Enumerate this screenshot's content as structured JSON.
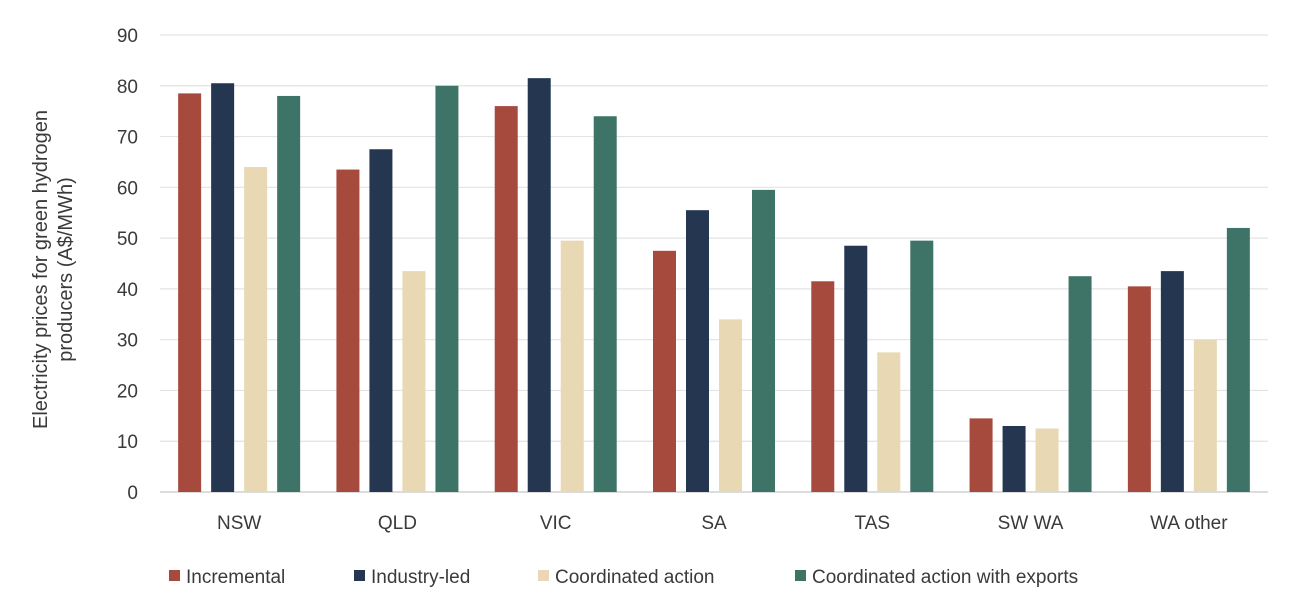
{
  "chart_data": {
    "type": "bar",
    "title": "",
    "xlabel": "",
    "ylabel_lines": [
      "Electricity prices for green hydrogen",
      "producers (A$/MWh)"
    ],
    "ylim": [
      0,
      90
    ],
    "yticks": [
      0,
      10,
      20,
      30,
      40,
      50,
      60,
      70,
      80,
      90
    ],
    "grid": true,
    "legend_position": "bottom",
    "categories": [
      "NSW",
      "QLD",
      "VIC",
      "SA",
      "TAS",
      "SW WA",
      "WA other"
    ],
    "series": [
      {
        "name": "Incremental",
        "color": "#a64a3d",
        "values": [
          78.5,
          63.5,
          76,
          47.5,
          41.5,
          14.5,
          40.5
        ]
      },
      {
        "name": "Industry-led",
        "color": "#243650",
        "values": [
          80.5,
          67.5,
          81.5,
          55.5,
          48.5,
          13,
          43.5
        ]
      },
      {
        "name": "Coordinated action",
        "color": "#e8d8b4",
        "values": [
          64,
          43.5,
          49.5,
          34,
          27.5,
          12.5,
          30
        ]
      },
      {
        "name": "Coordinated action with exports",
        "color": "#3e7468",
        "values": [
          78,
          80,
          74,
          59.5,
          49.5,
          42.5,
          52
        ]
      }
    ]
  }
}
